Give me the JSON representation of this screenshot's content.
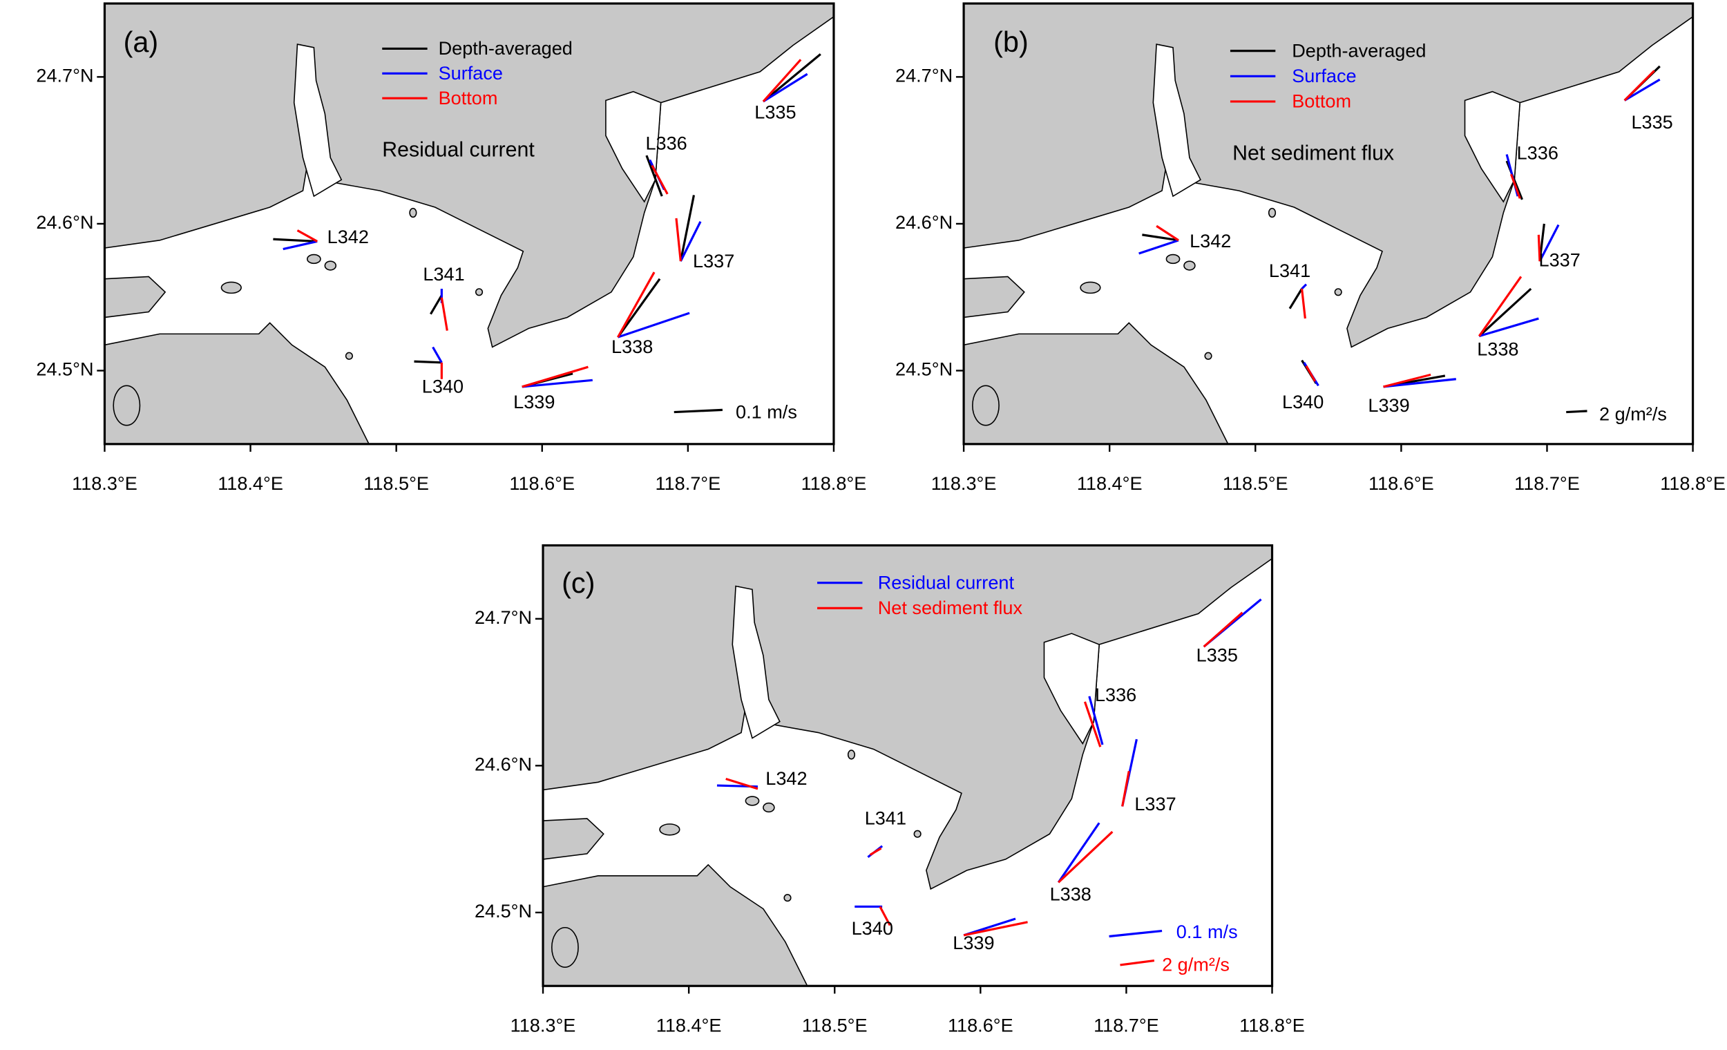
{
  "panels": [
    {
      "label": "(a)",
      "annotation": "Residual current",
      "legend": [
        {
          "name": "Depth-averaged",
          "color": "#000000"
        },
        {
          "name": "Surface",
          "color": "#0000ff"
        },
        {
          "name": "Bottom",
          "color": "#ff0000"
        }
      ],
      "scale": [
        {
          "label": "0.1 m/s",
          "color": "#000000"
        }
      ],
      "stations": [
        "L335",
        "L336",
        "L337",
        "L338",
        "L339",
        "L340",
        "L341",
        "L342"
      ],
      "xlim": [
        118.3,
        118.8
      ],
      "ylim": [
        24.45,
        24.75
      ],
      "xticks": [
        {
          "value": 118.3,
          "label": "118.3°E"
        },
        {
          "value": 118.4,
          "label": "118.4°E"
        },
        {
          "value": 118.5,
          "label": "118.5°E"
        },
        {
          "value": 118.6,
          "label": "118.6°E"
        },
        {
          "value": 118.7,
          "label": "118.7°E"
        },
        {
          "value": 118.8,
          "label": "118.8°E"
        }
      ],
      "yticks": [
        {
          "value": 24.5,
          "label": "24.5°N"
        },
        {
          "value": 24.6,
          "label": "24.6°N"
        },
        {
          "value": 24.7,
          "label": "24.7°N"
        }
      ]
    },
    {
      "label": "(b)",
      "annotation": "Net sediment flux",
      "legend": [
        {
          "name": "Depth-averaged",
          "color": "#000000"
        },
        {
          "name": "Surface",
          "color": "#0000ff"
        },
        {
          "name": "Bottom",
          "color": "#ff0000"
        }
      ],
      "scale": [
        {
          "label": "2 g/m²/s",
          "color": "#000000"
        }
      ],
      "stations": [
        "L335",
        "L336",
        "L337",
        "L338",
        "L339",
        "L340",
        "L341",
        "L342"
      ],
      "xlim": [
        118.3,
        118.8
      ],
      "ylim": [
        24.45,
        24.75
      ],
      "xticks": [
        {
          "value": 118.3,
          "label": "118.3°E"
        },
        {
          "value": 118.4,
          "label": "118.4°E"
        },
        {
          "value": 118.5,
          "label": "118.5°E"
        },
        {
          "value": 118.6,
          "label": "118.6°E"
        },
        {
          "value": 118.7,
          "label": "118.7°E"
        },
        {
          "value": 118.8,
          "label": "118.8°E"
        }
      ],
      "yticks": [
        {
          "value": 24.5,
          "label": "24.5°N"
        },
        {
          "value": 24.6,
          "label": "24.6°N"
        },
        {
          "value": 24.7,
          "label": "24.7°N"
        }
      ]
    },
    {
      "label": "(c)",
      "legend": [
        {
          "name": "Residual current",
          "color": "#0000ff"
        },
        {
          "name": "Net sediment flux",
          "color": "#ff0000"
        }
      ],
      "scale": [
        {
          "label": "0.1 m/s",
          "color": "#0000ff"
        },
        {
          "label": "2 g/m²/s",
          "color": "#ff0000"
        }
      ],
      "stations": [
        "L335",
        "L336",
        "L337",
        "L338",
        "L339",
        "L340",
        "L341",
        "L342"
      ],
      "xlim": [
        118.3,
        118.8
      ],
      "ylim": [
        24.45,
        24.75
      ],
      "xticks": [
        {
          "value": 118.3,
          "label": "118.3°E"
        },
        {
          "value": 118.4,
          "label": "118.4°E"
        },
        {
          "value": 118.5,
          "label": "118.5°E"
        },
        {
          "value": 118.6,
          "label": "118.6°E"
        },
        {
          "value": 118.7,
          "label": "118.7°E"
        },
        {
          "value": 118.8,
          "label": "118.8°E"
        }
      ],
      "yticks": [
        {
          "value": 24.5,
          "label": "24.5°N"
        },
        {
          "value": 24.6,
          "label": "24.6°N"
        },
        {
          "value": 24.7,
          "label": "24.7°N"
        }
      ]
    }
  ]
}
